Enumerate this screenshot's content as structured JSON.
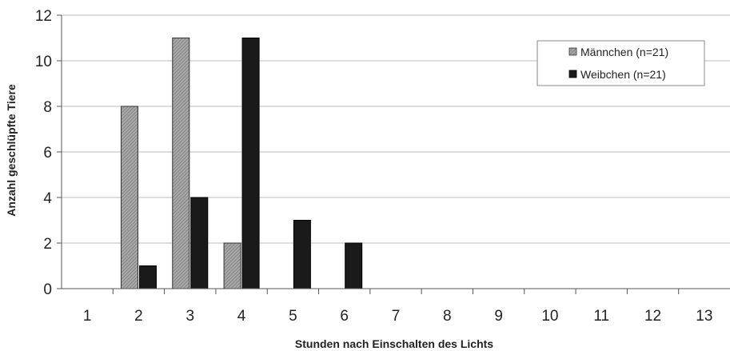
{
  "chart_data": {
    "type": "bar",
    "categories": [
      "1",
      "2",
      "3",
      "4",
      "5",
      "6",
      "7",
      "8",
      "9",
      "10",
      "11",
      "12",
      "13"
    ],
    "series": [
      {
        "name": "Männchen (n=21)",
        "values": [
          0,
          8,
          11,
          2,
          0,
          0,
          0,
          0,
          0,
          0,
          0,
          0,
          0
        ],
        "color": "#9a9a9a"
      },
      {
        "name": "Weibchen (n=21)",
        "values": [
          0,
          1,
          4,
          11,
          3,
          2,
          0,
          0,
          0,
          0,
          0,
          0,
          0
        ],
        "color": "#1a1a1a"
      }
    ],
    "xlabel": "Stunden nach Einschalten des Lichts",
    "ylabel": "Anzahl geschlüpfte Tiere",
    "ylim": [
      0,
      12
    ],
    "yticks": [
      "0",
      "2",
      "4",
      "6",
      "8",
      "10",
      "12"
    ],
    "grid": true,
    "legend_position": "top-right"
  }
}
